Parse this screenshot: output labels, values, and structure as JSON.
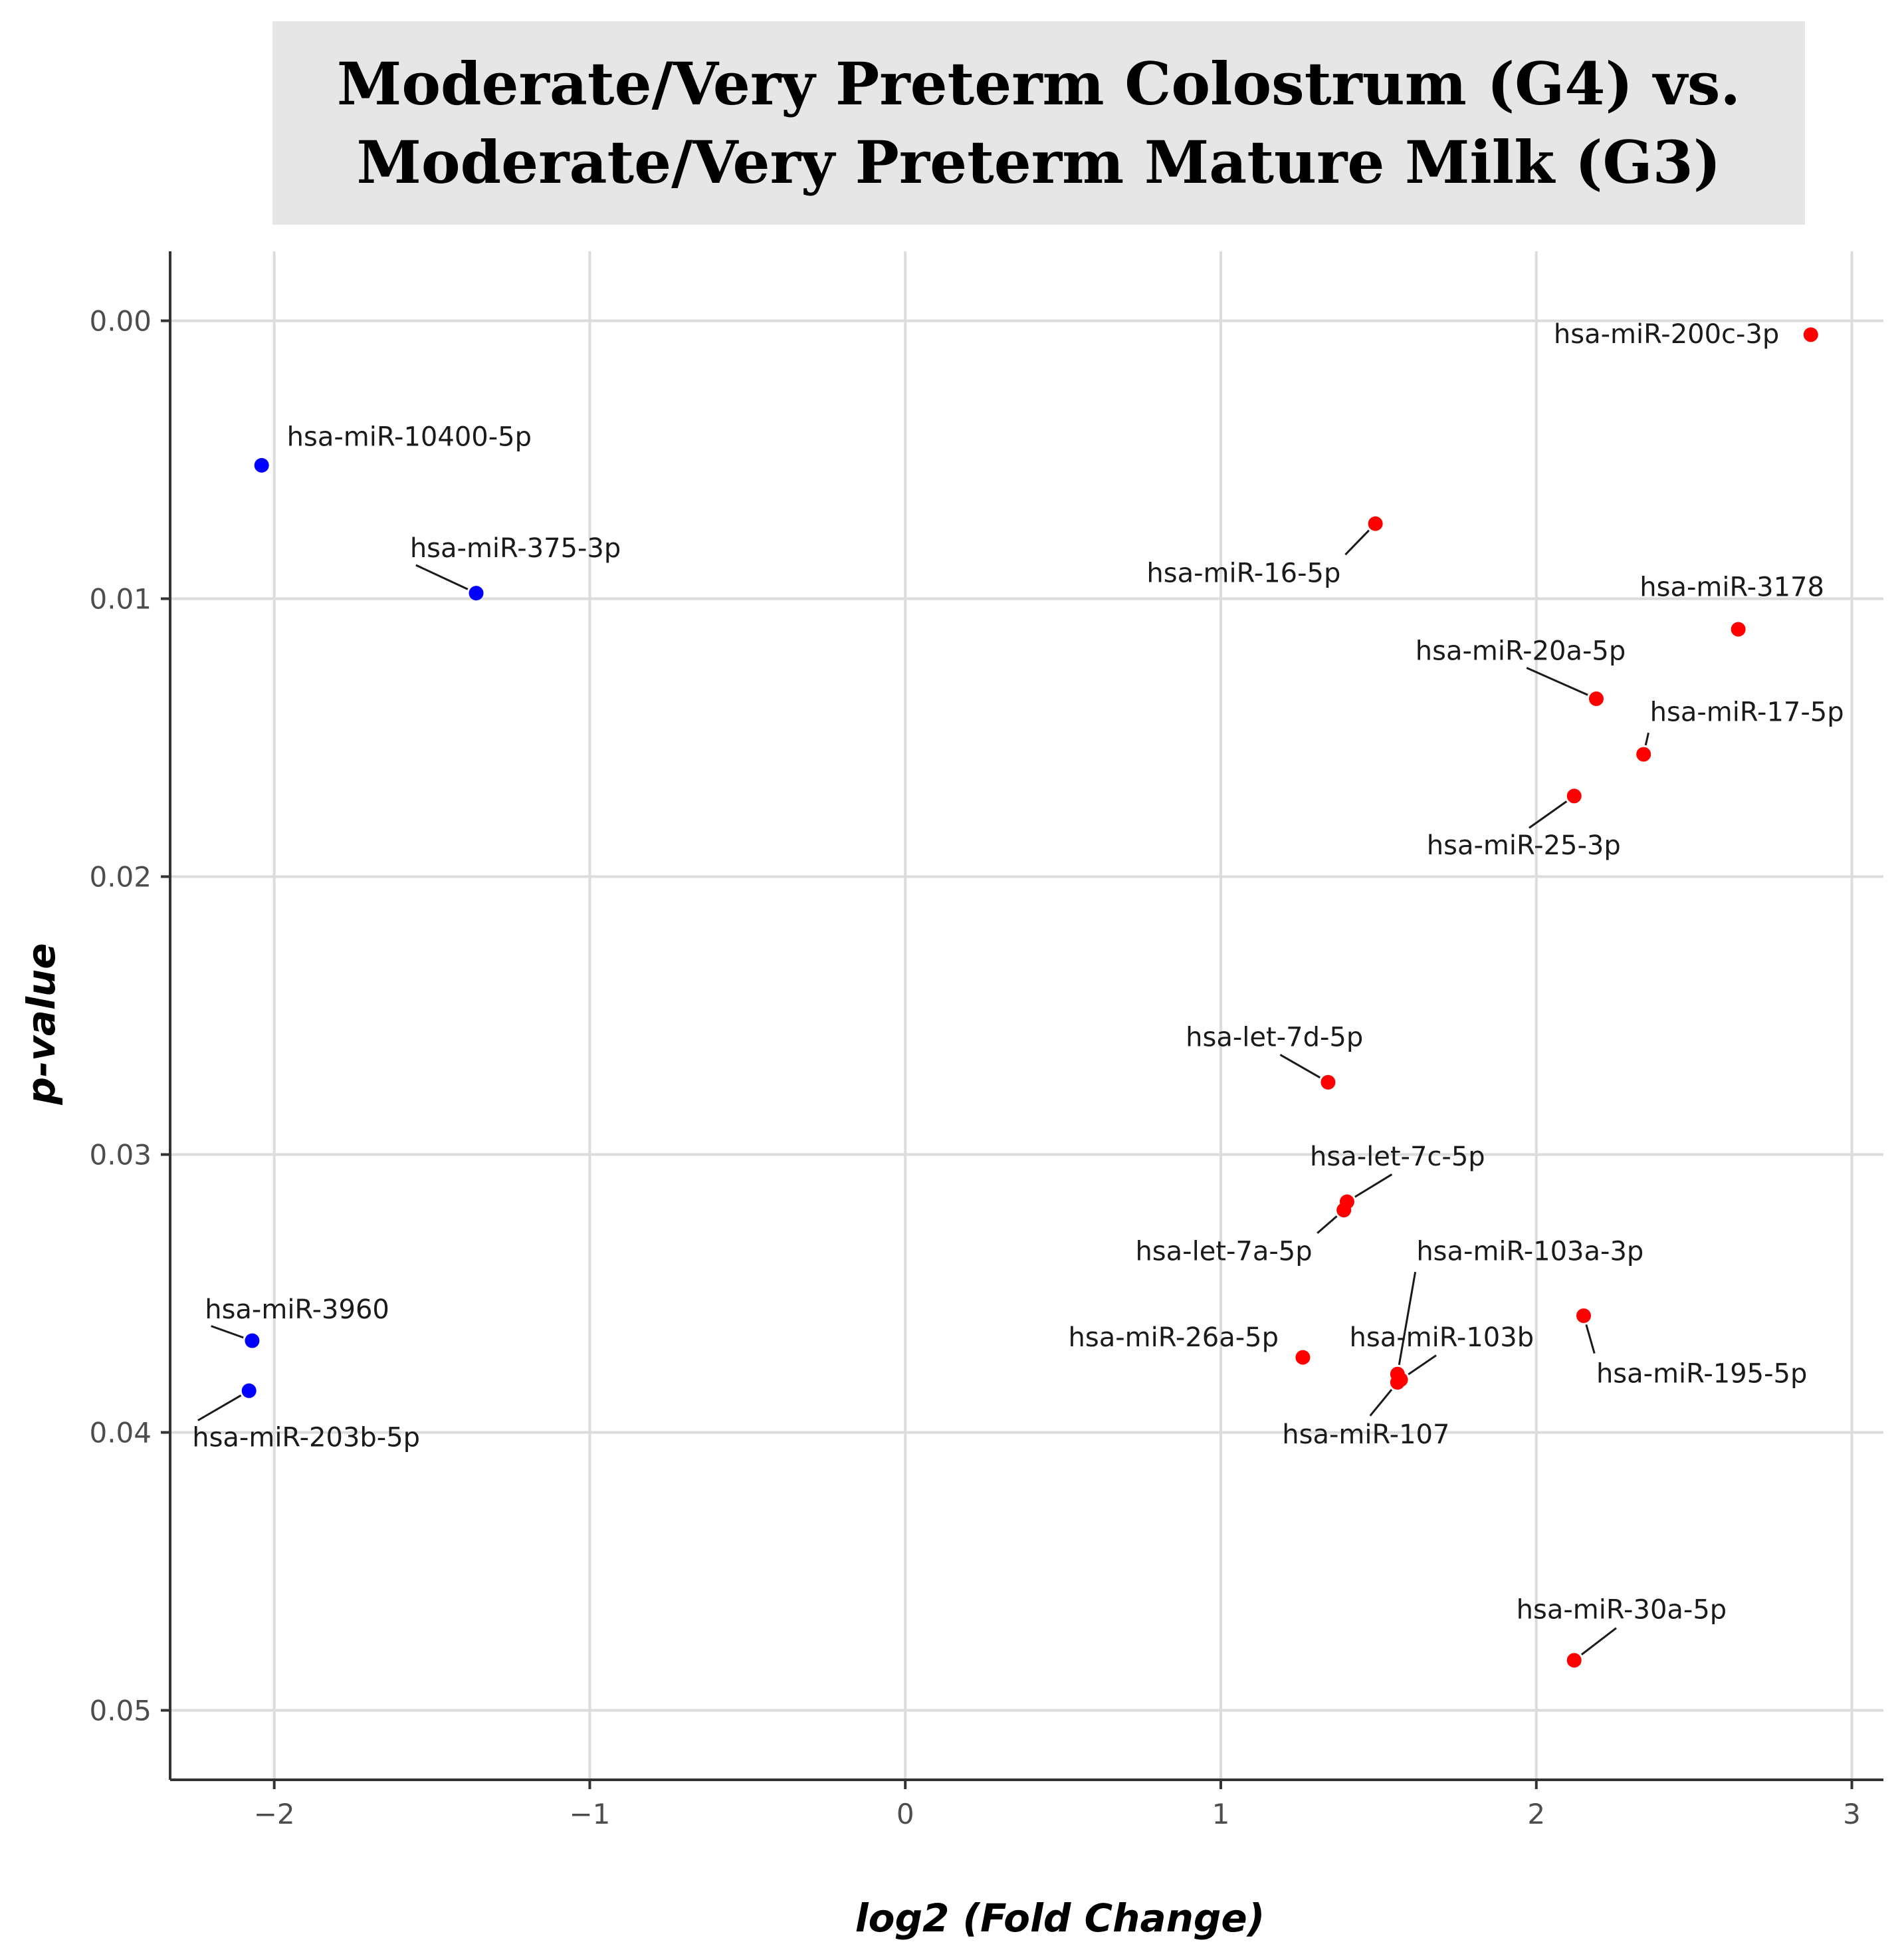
{
  "title": {
    "line1": "Moderate/Very Preterm Colostrum (G4) vs.",
    "line2": "Moderate/Very Preterm Mature Milk (G3)"
  },
  "colors": {
    "up": "#ff0000",
    "down": "#0000ff",
    "grid": "#dcdcdc",
    "axis": "#333333"
  },
  "chart_data": {
    "type": "scatter",
    "title": "Moderate/Very Preterm Colostrum (G4) vs. Moderate/Very Preterm Mature Milk (G3)",
    "xlabel": "log2 (Fold Change)",
    "ylabel": "p-value",
    "xlim": [
      -2.33,
      3.1
    ],
    "ylim": [
      -0.0025,
      0.0525
    ],
    "y_reversed": true,
    "grid": true,
    "x_ticks": [
      {
        "v": -2,
        "label": "−2"
      },
      {
        "v": -1,
        "label": "−1"
      },
      {
        "v": 0,
        "label": "0"
      },
      {
        "v": 1,
        "label": "1"
      },
      {
        "v": 2,
        "label": "2"
      },
      {
        "v": 3,
        "label": "3"
      }
    ],
    "y_ticks": [
      {
        "v": 0.0,
        "label": "0.00"
      },
      {
        "v": 0.01,
        "label": "0.01"
      },
      {
        "v": 0.02,
        "label": "0.02"
      },
      {
        "v": 0.03,
        "label": "0.03"
      },
      {
        "v": 0.04,
        "label": "0.04"
      },
      {
        "v": 0.05,
        "label": "0.05"
      }
    ],
    "series": [
      {
        "name": "down",
        "color": "#0000ff",
        "points": [
          {
            "label": "hsa-miR-10400-5p",
            "x": -2.04,
            "y": 0.0052,
            "lx": -1.96,
            "ly": 0.0045,
            "anchor": "start"
          },
          {
            "label": "hsa-miR-375-3p",
            "x": -1.36,
            "y": 0.0098,
            "lx": -1.57,
            "ly": 0.0085,
            "anchor": "start",
            "leader": true
          },
          {
            "label": "hsa-miR-3960",
            "x": -2.07,
            "y": 0.0367,
            "lx": -2.22,
            "ly": 0.0359,
            "anchor": "start",
            "leader": true
          },
          {
            "label": "hsa-miR-203b-5p",
            "x": -2.08,
            "y": 0.0385,
            "lx": -2.26,
            "ly": 0.0405,
            "anchor": "start",
            "leader": true
          }
        ]
      },
      {
        "name": "up",
        "color": "#ff0000",
        "points": [
          {
            "label": "hsa-miR-200c-3p",
            "x": 2.87,
            "y": 0.0005,
            "lx": 2.77,
            "ly": 0.0008,
            "anchor": "end"
          },
          {
            "label": "hsa-miR-16-5p",
            "x": 1.49,
            "y": 0.0073,
            "lx": 1.38,
            "ly": 0.0094,
            "anchor": "end",
            "leader": true
          },
          {
            "label": "hsa-miR-3178",
            "x": 2.64,
            "y": 0.0111,
            "lx": 2.62,
            "ly": 0.0099,
            "anchor": "middle"
          },
          {
            "label": "hsa-miR-20a-5p",
            "x": 2.19,
            "y": 0.0136,
            "lx": 1.95,
            "ly": 0.0122,
            "anchor": "middle",
            "leader": true
          },
          {
            "label": "hsa-miR-17-5p",
            "x": 2.34,
            "y": 0.0156,
            "lx": 2.36,
            "ly": 0.0144,
            "anchor": "start",
            "leader": true
          },
          {
            "label": "hsa-miR-25-3p",
            "x": 2.12,
            "y": 0.0171,
            "lx": 1.96,
            "ly": 0.0192,
            "anchor": "middle",
            "leader": true
          },
          {
            "label": "hsa-let-7d-5p",
            "x": 1.34,
            "y": 0.0274,
            "lx": 1.17,
            "ly": 0.0261,
            "anchor": "middle",
            "leader": true
          },
          {
            "label": "hsa-let-7c-5p",
            "x": 1.4,
            "y": 0.0317,
            "lx": 1.56,
            "ly": 0.0304,
            "anchor": "middle",
            "leader": true
          },
          {
            "label": "hsa-let-7a-5p",
            "x": 1.39,
            "y": 0.032,
            "lx": 1.29,
            "ly": 0.0338,
            "anchor": "end",
            "leader": true
          },
          {
            "label": "hsa-miR-103a-3p",
            "x": 1.56,
            "y": 0.0379,
            "lx": 1.62,
            "ly": 0.0338,
            "anchor": "start",
            "leader": true
          },
          {
            "label": "hsa-miR-103b",
            "x": 1.57,
            "y": 0.0381,
            "lx": 1.7,
            "ly": 0.0369,
            "anchor": "middle",
            "leader": true
          },
          {
            "label": "hsa-miR-107",
            "x": 1.56,
            "y": 0.0382,
            "lx": 1.46,
            "ly": 0.0404,
            "anchor": "middle",
            "leader": true
          },
          {
            "label": "hsa-miR-26a-5p",
            "x": 1.26,
            "y": 0.0373,
            "lx": 0.85,
            "ly": 0.0369,
            "anchor": "middle"
          },
          {
            "label": "hsa-miR-195-5p",
            "x": 2.15,
            "y": 0.0358,
            "lx": 2.19,
            "ly": 0.0382,
            "anchor": "start",
            "leader": true
          },
          {
            "label": "hsa-miR-30a-5p",
            "x": 2.12,
            "y": 0.0482,
            "lx": 2.27,
            "ly": 0.0467,
            "anchor": "middle",
            "leader": true
          }
        ]
      }
    ]
  }
}
